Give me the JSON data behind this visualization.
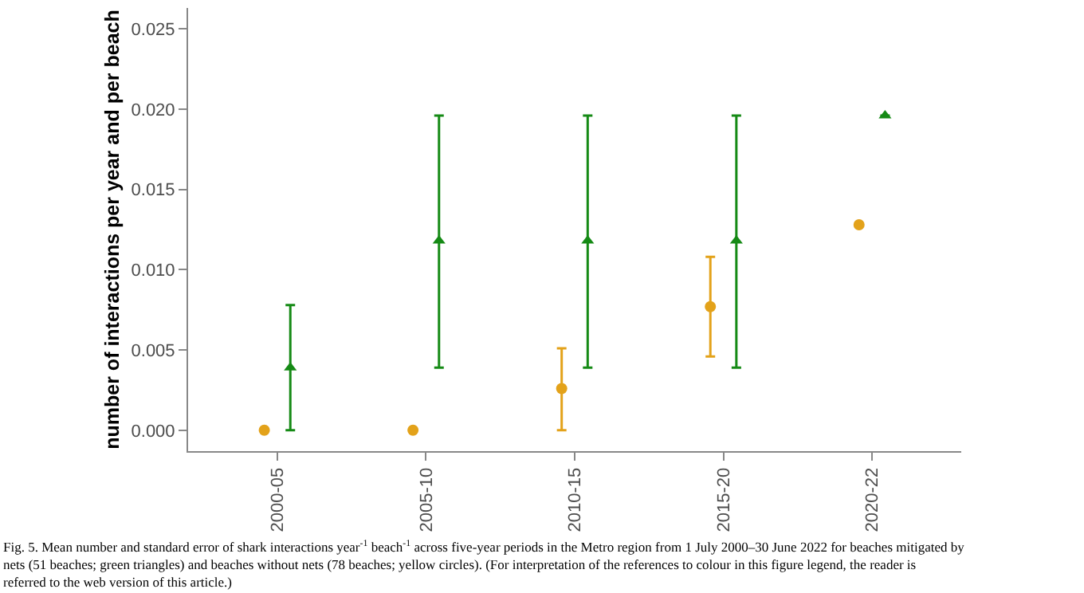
{
  "chart_data": {
    "type": "scatter",
    "ylabel": "number of interactions per year and per beach",
    "categories": [
      "2000-05",
      "2005-10",
      "2010-15",
      "2015-20",
      "2020-22"
    ],
    "series": [
      {
        "color": "#e3a21a",
        "marker": "circle",
        "values": [
          0.0,
          0.0,
          0.0026,
          0.0077,
          0.0128
        ],
        "errors": [
          null,
          null,
          [
            0.0,
            0.0051
          ],
          [
            0.0046,
            0.0108
          ],
          null
        ]
      },
      {
        "color": "#158a15",
        "marker": "triangle",
        "values": [
          0.0039,
          0.0118,
          0.0118,
          0.0118,
          0.0196
        ],
        "errors": [
          [
            0.0,
            0.0078
          ],
          [
            0.0039,
            0.0196
          ],
          [
            0.0039,
            0.0196
          ],
          [
            0.0039,
            0.0196
          ],
          null
        ]
      }
    ],
    "ylim": [
      -0.0013,
      0.0263
    ],
    "yticks": [
      {
        "value": 0,
        "label": "0.000"
      },
      {
        "value": 0.005,
        "label": "0.005"
      },
      {
        "value": 0.01,
        "label": "0.010"
      },
      {
        "value": 0.015,
        "label": "0.015"
      },
      {
        "value": 0.02,
        "label": "0.020"
      },
      {
        "value": 0.025,
        "label": "0.025"
      }
    ],
    "annotations": [
      "Fig. 5. Mean number and standard error of shark interactions year$^{-1}$ beach$^{-1}$ across five-year periods in the Metro region from 1 July 2000–30 June 2022 for beaches mitigated by nets (51 beaches; green triangles) and beaches without nets (78 beaches; yellow circles). (For interpretation of the references to colour in this figure legend, the reader is referred to the web version of this article.)"
    ]
  }
}
